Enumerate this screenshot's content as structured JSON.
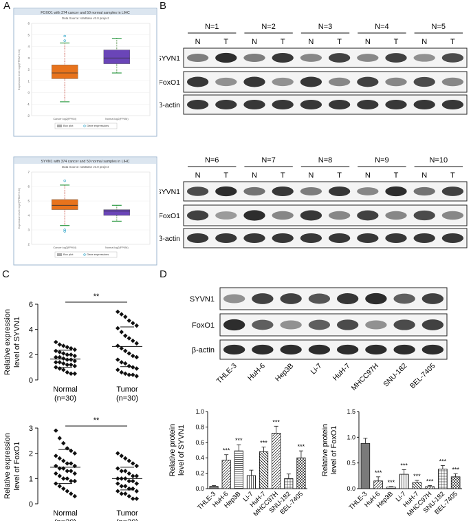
{
  "panel_letters": [
    "A",
    "B",
    "C",
    "D"
  ],
  "panelA": {
    "top": {
      "title": "FOXO1 with 374 cancer and 50 normal samples in LIHC",
      "subtitle": "Data Source: starBase v3.0 project",
      "ylabel": "Expression level: log2(FPKM+0.01)",
      "yticks": [
        "6",
        "5",
        "4",
        "3",
        "2",
        "1",
        "0",
        "-1",
        "-2"
      ],
      "xcats": [
        "Cancer log2(FPKM)",
        "Normal log2(FPKM)"
      ],
      "legend": [
        "Box plot",
        "Gene expressions"
      ]
    },
    "bottom": {
      "title": "SYVN1 with 374 cancer and 50 normal samples in LIHC",
      "subtitle": "Data Source: starBase v3.0 project",
      "ylabel": "Expression level: log2(FPKM+0.01)",
      "yticks": [
        "7",
        "6",
        "5",
        "4",
        "3",
        "2"
      ],
      "xcats": [
        "Cancer log2(FPKM)",
        "Normal log2(FPKM)"
      ],
      "legend": [
        "Box plot",
        "Gene expressions"
      ]
    }
  },
  "panelB": {
    "row1_groups": [
      "N=1",
      "N=2",
      "N=3",
      "N=4",
      "N=5"
    ],
    "row2_groups": [
      "N=6",
      "N=7",
      "N=8",
      "N=9",
      "N=10"
    ],
    "lane_labels": [
      "N",
      "T"
    ],
    "bands": [
      "SYVN1",
      "FoxO1",
      "β-actin"
    ]
  },
  "panelC": {
    "top": {
      "ylabel_line1": "Relative expression",
      "ylabel_line2": "level of SYVN1",
      "yticks": [
        "0",
        "2",
        "4",
        "6"
      ],
      "groups": [
        "Normal",
        "Tumor"
      ],
      "ns": [
        "(n=30)",
        "(n=30)"
      ],
      "sig": "**"
    },
    "bottom": {
      "ylabel_line1": "Relative expression",
      "ylabel_line2": "level of FoxO1",
      "yticks": [
        "0",
        "1",
        "2",
        "3"
      ],
      "groups": [
        "Normal",
        "Tumor"
      ],
      "ns": [
        "(n=30)",
        "(n=30)"
      ],
      "sig": "**"
    }
  },
  "panelD": {
    "bands": [
      "SYVN1",
      "FoxO1",
      "β-actin"
    ],
    "cell_lines": [
      "THLE-3",
      "HuH-6",
      "Hep3B",
      "Li-7",
      "HuH-7",
      "MHCC97H",
      "SNU-182",
      "BEL-7405"
    ],
    "left": {
      "ylabel_line1": "Relative protein",
      "ylabel_line2": "level of SYVN1",
      "yticks": [
        "0.0",
        "0.2",
        "0.4",
        "0.6",
        "0.8",
        "1.0"
      ]
    },
    "right": {
      "ylabel_line1": "Relative protein",
      "ylabel_line2": "level of FoxO1",
      "yticks": [
        "0.0",
        "0.5",
        "1.0",
        "1.5"
      ]
    }
  },
  "chart_data": [
    {
      "type": "box",
      "title": "FOXO1 with 374 cancer and 50 normal samples in LIHC",
      "categories": [
        "Cancer log2(FPKM)",
        "Normal log2(FPKM)"
      ],
      "ylim": [
        -2,
        6
      ],
      "boxes": [
        {
          "whisker_low": -0.8,
          "q1": 1.2,
          "median": 1.7,
          "q3": 2.4,
          "whisker_high": 4.3,
          "outliers": [
            4.9,
            4.5
          ]
        },
        {
          "whisker_low": 1.7,
          "q1": 2.5,
          "median": 3.0,
          "q3": 3.7,
          "whisker_high": 4.7,
          "outliers": []
        }
      ],
      "colors": [
        "#e8731c",
        "#6a45b8"
      ]
    },
    {
      "type": "box",
      "title": "SYVN1 with 374 cancer and 50 normal samples in LIHC",
      "categories": [
        "Cancer log2(FPKM)",
        "Normal log2(FPKM)"
      ],
      "ylim": [
        2,
        7
      ],
      "boxes": [
        {
          "whisker_low": 3.3,
          "q1": 4.4,
          "median": 4.7,
          "q3": 5.1,
          "whisker_high": 6.1,
          "outliers": [
            6.4,
            2.9,
            3.0
          ]
        },
        {
          "whisker_low": 3.6,
          "q1": 4.0,
          "median": 4.3,
          "q3": 4.4,
          "whisker_high": 4.7,
          "outliers": []
        }
      ],
      "colors": [
        "#e8731c",
        "#6a45b8"
      ]
    },
    {
      "type": "scatter",
      "ylabel": "Relative expression level of SYVN1",
      "categories": [
        "Normal",
        "Tumor"
      ],
      "ylim": [
        0,
        6
      ],
      "series": [
        {
          "name": "Normal",
          "mean": 1.65,
          "sd_low": 1.0,
          "sd_high": 2.35,
          "values": [
            3.0,
            2.8,
            2.7,
            2.6,
            2.5,
            2.4,
            2.3,
            2.2,
            2.1,
            2.0,
            2.0,
            1.9,
            1.8,
            1.8,
            1.7,
            1.6,
            1.6,
            1.5,
            1.4,
            1.4,
            1.3,
            1.2,
            1.2,
            1.1,
            1.0,
            0.9,
            0.8,
            0.6,
            0.5,
            0.5
          ]
        },
        {
          "name": "Tumor",
          "mean": 2.65,
          "sd_low": 1.05,
          "sd_high": 4.2,
          "values": [
            5.4,
            5.2,
            5.0,
            4.7,
            4.5,
            4.3,
            4.1,
            3.8,
            3.5,
            3.3,
            3.1,
            2.9,
            2.7,
            2.5,
            2.3,
            2.1,
            1.9,
            1.8,
            1.6,
            1.4,
            1.3,
            1.1,
            1.0,
            0.9,
            0.8,
            0.6,
            0.5,
            0.4,
            0.4,
            0.3
          ]
        }
      ],
      "annotation": "**"
    },
    {
      "type": "scatter",
      "ylabel": "Relative expression level of FoxO1",
      "categories": [
        "Normal",
        "Tumor"
      ],
      "ylim": [
        0,
        3
      ],
      "series": [
        {
          "name": "Normal",
          "mean": 1.45,
          "sd_low": 0.8,
          "sd_high": 2.15,
          "values": [
            2.9,
            2.6,
            2.4,
            2.2,
            2.1,
            2.0,
            1.9,
            1.8,
            1.7,
            1.6,
            1.6,
            1.5,
            1.5,
            1.4,
            1.4,
            1.3,
            1.3,
            1.2,
            1.2,
            1.1,
            1.0,
            1.0,
            0.9,
            0.9,
            0.8,
            0.7,
            0.6,
            0.5,
            0.4,
            0.3
          ]
        },
        {
          "name": "Tumor",
          "mean": 1.0,
          "sd_low": 0.55,
          "sd_high": 1.45,
          "values": [
            2.0,
            1.9,
            1.8,
            1.7,
            1.6,
            1.5,
            1.4,
            1.3,
            1.3,
            1.2,
            1.1,
            1.1,
            1.0,
            1.0,
            1.0,
            0.9,
            0.9,
            0.8,
            0.8,
            0.7,
            0.7,
            0.6,
            0.6,
            0.5,
            0.5,
            0.4,
            0.4,
            0.3,
            0.2,
            0.2
          ]
        }
      ],
      "annotation": "**"
    },
    {
      "type": "bar",
      "ylabel": "Relative protein level of SYVN1",
      "categories": [
        "THLE-3",
        "HuH-6",
        "Hep3B",
        "Li-7",
        "HuH-7",
        "MHCC97H",
        "SNU-182",
        "BEL-7405"
      ],
      "values": [
        0.03,
        0.37,
        0.49,
        0.17,
        0.48,
        0.72,
        0.13,
        0.4
      ],
      "errors": [
        0.01,
        0.07,
        0.08,
        0.07,
        0.06,
        0.09,
        0.06,
        0.09
      ],
      "significance": [
        "",
        "***",
        "***",
        "",
        "***",
        "***",
        "",
        "***"
      ],
      "ylim": [
        0,
        1.0
      ]
    },
    {
      "type": "bar",
      "ylabel": "Relative protein level of FoxO1",
      "categories": [
        "THLE-3",
        "HuH-6",
        "Hep3B",
        "Li-7",
        "HuH-7",
        "MHCC97H",
        "SNU-182",
        "BEL-7405"
      ],
      "values": [
        0.88,
        0.15,
        0.03,
        0.28,
        0.12,
        0.04,
        0.38,
        0.23
      ],
      "errors": [
        0.1,
        0.08,
        0.01,
        0.09,
        0.04,
        0.02,
        0.07,
        0.06
      ],
      "significance": [
        "",
        "***",
        "***",
        "***",
        "***",
        "***",
        "***",
        "***"
      ],
      "ylim": [
        0,
        1.5
      ]
    }
  ]
}
